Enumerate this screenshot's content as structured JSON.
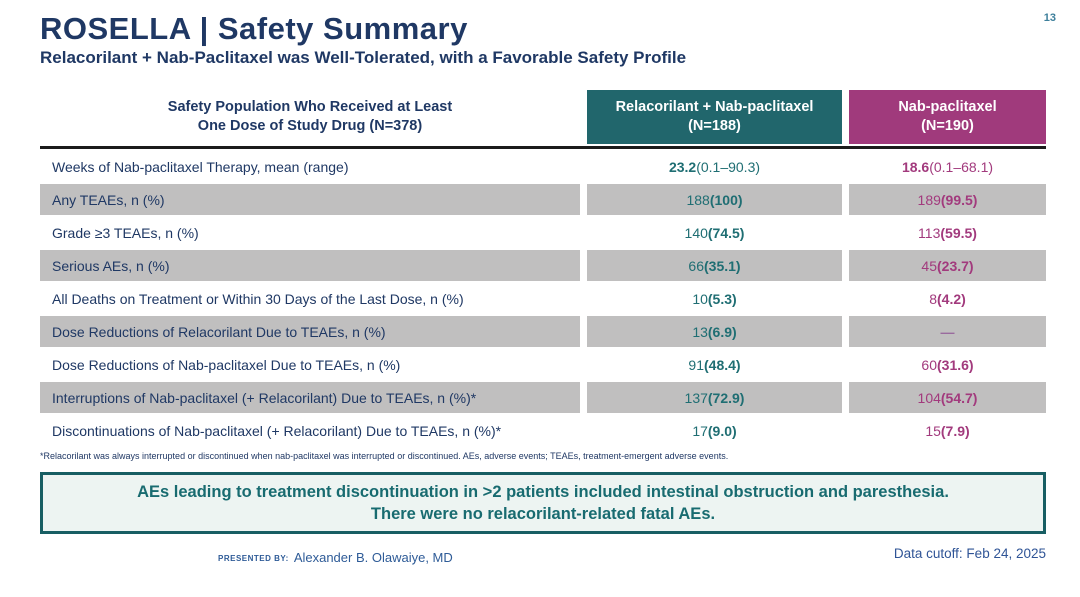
{
  "slide": {
    "page_number": "13",
    "title": "ROSELLA | Safety Summary",
    "subtitle": "Relacorilant + Nab-Paclitaxel was Well-Tolerated, with a Favorable Safety Profile",
    "footnote": "*Relacorilant was always interrupted or discontinued when nab-paclitaxel was interrupted or discontinued. AEs, adverse events; TEAEs, treatment-emergent adverse events.",
    "callout_line1": "AEs leading to treatment discontinuation in >2 patients included intestinal obstruction and paresthesia.",
    "callout_line2": "There were no relacorilant-related fatal AEs.",
    "presented_by_label": "PRESENTED BY:",
    "presenter": "Alexander B. Olawaiye, MD",
    "data_cutoff": "Data cutoff: Feb 24, 2025"
  },
  "table": {
    "header": {
      "col0_line1": "Safety Population Who Received at Least",
      "col0_line2": "One Dose of Study Drug (N=378)",
      "col1_line1": "Relacorilant + Nab-paclitaxel",
      "col1_line2": "(N=188)",
      "col2_line1": "Nab-paclitaxel",
      "col2_line2": "(N=190)"
    },
    "rows": [
      {
        "label": "Weeks of Nab-paclitaxel Therapy, mean (range)",
        "c1_main": "23.2",
        "c1_paren": " (0.1–90.3)",
        "c2_main": "18.6",
        "c2_paren": " (0.1–68.1)"
      },
      {
        "label": "Any TEAEs, n (%)",
        "c1_main": "188 ",
        "c1_paren": "(100)",
        "c2_main": "189 ",
        "c2_paren": "(99.5)"
      },
      {
        "label": "Grade ≥3 TEAEs, n (%)",
        "c1_main": "140 ",
        "c1_paren": "(74.5)",
        "c2_main": "113 ",
        "c2_paren": "(59.5)"
      },
      {
        "label": "Serious AEs, n (%)",
        "c1_main": "66 ",
        "c1_paren": "(35.1)",
        "c2_main": "45 ",
        "c2_paren": "(23.7)"
      },
      {
        "label": "All Deaths on Treatment or Within 30 Days of the Last Dose, n (%)",
        "c1_main": "10 ",
        "c1_paren": "(5.3)",
        "c2_main": "8 ",
        "c2_paren": "(4.2)"
      },
      {
        "label": "Dose Reductions of Relacorilant Due to TEAEs, n (%)",
        "c1_main": "13 ",
        "c1_paren": "(6.9)",
        "c2_main": "—",
        "c2_paren": ""
      },
      {
        "label": "Dose Reductions of Nab-paclitaxel Due to TEAEs, n (%)",
        "c1_main": "91 ",
        "c1_paren": "(48.4)",
        "c2_main": "60 ",
        "c2_paren": "(31.6)"
      },
      {
        "label": "Interruptions of Nab-paclitaxel (+ Relacorilant) Due to TEAEs, n (%)*",
        "c1_main": "137 ",
        "c1_paren": "(72.9)",
        "c2_main": "104 ",
        "c2_paren": "(54.7)"
      },
      {
        "label": "Discontinuations of Nab-paclitaxel (+ Relacorilant) Due to TEAEs, n (%)*",
        "c1_main": "17 ",
        "c1_paren": "(9.0)",
        "c2_main": "15 ",
        "c2_paren": "(7.9)"
      }
    ]
  },
  "colors": {
    "navy": "#1F3864",
    "teal_header_bg": "#21666C",
    "magenta_header_bg": "#A03A7C",
    "gray_row": "#C0BFBF",
    "teal_text": "#1F6E73",
    "magenta_text": "#A23A7D",
    "callout_border": "#175E63",
    "callout_bg": "#EDF4F2",
    "callout_text": "#186B70",
    "footer_blue": "#2E5B97",
    "page_number_teal": "#3D7F9B"
  }
}
